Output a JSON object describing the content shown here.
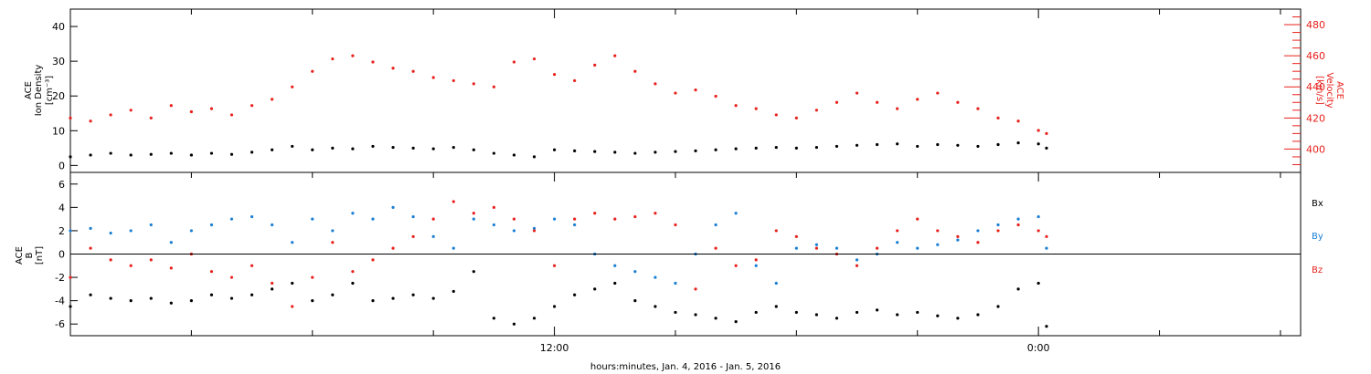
{
  "colors": {
    "black": "#000000",
    "red": "#e8211c",
    "blue": "#1a7fd4",
    "frame": "#000000"
  },
  "chart_data": [
    {
      "type": "scatter",
      "title": "",
      "panel": "top",
      "ylabel": [
        "ACE",
        "Ion Density",
        "[cm⁻³]"
      ],
      "ylabel_right": [
        "ACE",
        "Velocity",
        "[km/s]"
      ],
      "ylim": [
        -2,
        45
      ],
      "ylim_right": [
        385,
        490
      ],
      "yticks": [
        0,
        10,
        20,
        30,
        40
      ],
      "yticks_right": [
        400,
        420,
        440,
        460,
        480
      ],
      "series": [
        {
          "axis": "left",
          "color": "#000000",
          "x": [
            0.0,
            0.5,
            1.0,
            1.5,
            2.0,
            2.5,
            3.0,
            3.5,
            4.0,
            4.5,
            5.0,
            5.5,
            6.0,
            6.5,
            7.0,
            7.5,
            8.0,
            8.5,
            9.0,
            9.5,
            10.0,
            10.5,
            11.0,
            11.5,
            12.0,
            12.5,
            13.0,
            13.5,
            14.0,
            14.5,
            15.0,
            15.5,
            16.0,
            16.5,
            17.0,
            17.5,
            18.0,
            18.5,
            19.0,
            19.5,
            20.0,
            20.5,
            21.0,
            21.5,
            22.0,
            22.5,
            23.0,
            23.5,
            24.0,
            24.2
          ],
          "y": [
            2.5,
            3.0,
            3.5,
            3.0,
            3.2,
            3.5,
            3.0,
            3.5,
            3.2,
            3.8,
            4.5,
            5.5,
            4.5,
            5.0,
            4.8,
            5.5,
            5.2,
            5.0,
            4.8,
            5.2,
            4.5,
            3.5,
            3.0,
            2.5,
            4.5,
            4.2,
            4.0,
            3.8,
            3.5,
            3.8,
            4.0,
            4.2,
            4.5,
            4.8,
            5.0,
            5.2,
            5.0,
            5.2,
            5.5,
            5.8,
            6.0,
            6.2,
            5.5,
            6.0,
            5.8,
            5.5,
            6.0,
            6.5,
            6.2,
            5.0
          ]
        },
        {
          "axis": "right",
          "color": "#e8211c",
          "x": [
            0.0,
            0.5,
            1.0,
            1.5,
            2.0,
            2.5,
            3.0,
            3.5,
            4.0,
            4.5,
            5.0,
            5.5,
            6.0,
            6.5,
            7.0,
            7.5,
            8.0,
            8.5,
            9.0,
            9.5,
            10.0,
            10.5,
            11.0,
            11.5,
            12.0,
            12.5,
            13.0,
            13.5,
            14.0,
            14.5,
            15.0,
            15.5,
            16.0,
            16.5,
            17.0,
            17.5,
            18.0,
            18.5,
            19.0,
            19.5,
            20.0,
            20.5,
            21.0,
            21.5,
            22.0,
            22.5,
            23.0,
            23.5,
            24.0,
            24.2
          ],
          "y": [
            420,
            418,
            422,
            425,
            420,
            428,
            424,
            426,
            422,
            428,
            432,
            440,
            450,
            458,
            460,
            456,
            452,
            450,
            446,
            444,
            442,
            440,
            456,
            458,
            448,
            444,
            454,
            460,
            450,
            442,
            436,
            438,
            434,
            428,
            426,
            422,
            420,
            425,
            430,
            436,
            430,
            426,
            432,
            436,
            430,
            426,
            420,
            418,
            412,
            410
          ]
        }
      ]
    },
    {
      "type": "scatter",
      "title": "",
      "panel": "bottom",
      "ylabel": [
        "ACE",
        "B",
        "[nT]"
      ],
      "ylim": [
        -7,
        7
      ],
      "yticks": [
        -6,
        -4,
        -2,
        0,
        2,
        4,
        6
      ],
      "xlabel": "hours:minutes, Jan.  4, 2016 - Jan.  5, 2016",
      "xtick_labels": [
        {
          "label": "12:00",
          "hour": 12
        },
        {
          "label": "0:00",
          "hour": 24
        }
      ],
      "xlim": [
        0,
        30.5
      ],
      "zero_line": true,
      "legend_placement": "right",
      "series": [
        {
          "name": "Bx",
          "color": "#000000",
          "x": [
            0.0,
            0.5,
            1.0,
            1.5,
            2.0,
            2.5,
            3.0,
            3.5,
            4.0,
            4.5,
            5.0,
            5.5,
            6.0,
            6.5,
            7.0,
            7.5,
            8.0,
            8.5,
            9.0,
            9.5,
            10.0,
            10.5,
            11.0,
            11.5,
            12.0,
            12.5,
            13.0,
            13.5,
            14.0,
            14.5,
            15.0,
            15.5,
            16.0,
            16.5,
            17.0,
            17.5,
            18.0,
            18.5,
            19.0,
            19.5,
            20.0,
            20.5,
            21.0,
            21.5,
            22.0,
            22.5,
            23.0,
            23.5,
            24.0,
            24.2
          ],
          "y": [
            -4.5,
            -3.5,
            -3.8,
            -4.0,
            -3.8,
            -4.2,
            -4.0,
            -3.5,
            -3.8,
            -3.5,
            -3.0,
            -2.5,
            -4.0,
            -3.5,
            -2.5,
            -4.0,
            -3.8,
            -3.5,
            -3.8,
            -3.2,
            -1.5,
            -5.5,
            -6.0,
            -5.5,
            -4.5,
            -3.5,
            -3.0,
            -2.5,
            -4.0,
            -4.5,
            -5.0,
            -5.2,
            -5.5,
            -5.8,
            -5.0,
            -4.5,
            -5.0,
            -5.2,
            -5.5,
            -5.0,
            -4.8,
            -5.2,
            -5.0,
            -5.3,
            -5.5,
            -5.2,
            -4.5,
            -3.0,
            -2.5,
            -6.2
          ]
        },
        {
          "name": "By",
          "color": "#1a7fd4",
          "x": [
            0.0,
            0.5,
            1.0,
            1.5,
            2.0,
            2.5,
            3.0,
            3.5,
            4.0,
            4.5,
            5.0,
            5.5,
            6.0,
            6.5,
            7.0,
            7.5,
            8.0,
            8.5,
            9.0,
            9.5,
            10.0,
            10.5,
            11.0,
            11.5,
            12.0,
            12.5,
            13.0,
            13.5,
            14.0,
            14.5,
            15.0,
            15.5,
            16.0,
            16.5,
            17.0,
            17.5,
            18.0,
            18.5,
            19.0,
            19.5,
            20.0,
            20.5,
            21.0,
            21.5,
            22.0,
            22.5,
            23.0,
            23.5,
            24.0,
            24.2
          ],
          "y": [
            2.0,
            2.2,
            1.8,
            2.0,
            2.5,
            1.0,
            2.0,
            2.5,
            3.0,
            3.2,
            2.5,
            1.0,
            3.0,
            2.0,
            3.5,
            3.0,
            4.0,
            3.2,
            1.5,
            0.5,
            3.0,
            2.5,
            2.0,
            2.2,
            3.0,
            2.5,
            0.0,
            -1.0,
            -1.5,
            -2.0,
            -2.5,
            0.0,
            2.5,
            3.5,
            -1.0,
            -2.5,
            0.5,
            0.8,
            0.5,
            -0.5,
            0.0,
            1.0,
            0.5,
            0.8,
            1.2,
            2.0,
            2.5,
            3.0,
            3.2,
            0.5
          ]
        },
        {
          "name": "Bz",
          "color": "#e8211c",
          "x": [
            0.0,
            0.5,
            1.0,
            1.5,
            2.0,
            2.5,
            3.0,
            3.5,
            4.0,
            4.5,
            5.0,
            5.5,
            6.0,
            6.5,
            7.0,
            7.5,
            8.0,
            8.5,
            9.0,
            9.5,
            10.0,
            10.5,
            11.0,
            11.5,
            12.0,
            12.5,
            13.0,
            13.5,
            14.0,
            14.5,
            15.0,
            15.5,
            16.0,
            16.5,
            17.0,
            17.5,
            18.0,
            18.5,
            19.0,
            19.5,
            20.0,
            20.5,
            21.0,
            21.5,
            22.0,
            22.5,
            23.0,
            23.5,
            24.0,
            24.2
          ],
          "y": [
            -2.0,
            0.5,
            -0.5,
            -1.0,
            -0.5,
            -1.2,
            0.0,
            -1.5,
            -2.0,
            -1.0,
            -2.5,
            -4.5,
            -2.0,
            1.0,
            -1.5,
            -0.5,
            0.5,
            1.5,
            3.0,
            4.5,
            3.5,
            4.0,
            3.0,
            2.0,
            -1.0,
            3.0,
            3.5,
            3.0,
            3.2,
            3.5,
            2.5,
            -3.0,
            0.5,
            -1.0,
            -0.5,
            2.0,
            1.5,
            0.5,
            0.0,
            -1.0,
            0.5,
            2.0,
            3.0,
            2.0,
            1.5,
            1.0,
            2.0,
            2.5,
            2.0,
            1.5
          ]
        }
      ]
    }
  ]
}
